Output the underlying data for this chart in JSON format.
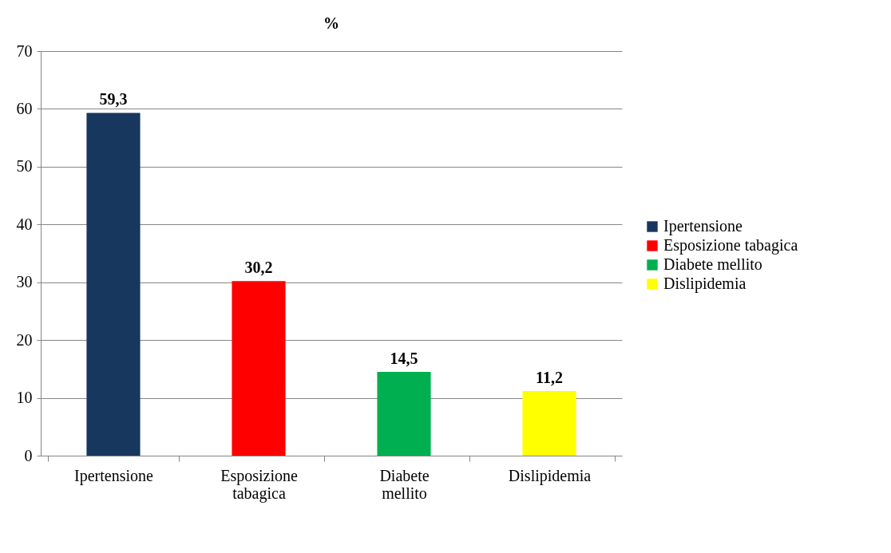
{
  "chart_data": {
    "type": "bar",
    "title": "%",
    "categories": [
      "Ipertensione",
      "Esposizione tabagica",
      "Diabete mellito",
      "Dislipidemia"
    ],
    "series": [
      {
        "name": "Ipertensione",
        "color": "#17375e",
        "values": [
          59.3,
          null,
          null,
          null
        ],
        "value_labels": [
          "59,3",
          null,
          null,
          null
        ]
      },
      {
        "name": "Esposizione tabagica",
        "color": "#ff0000",
        "values": [
          null,
          30.2,
          null,
          null
        ],
        "value_labels": [
          null,
          "30,2",
          null,
          null
        ]
      },
      {
        "name": "Diabete mellito",
        "color": "#00b050",
        "values": [
          null,
          null,
          14.5,
          null
        ],
        "value_labels": [
          null,
          null,
          "14,5",
          null
        ]
      },
      {
        "name": "Dislipidemia",
        "color": "#ffff00",
        "values": [
          null,
          null,
          null,
          11.2
        ],
        "value_labels": [
          null,
          null,
          null,
          "11,2"
        ]
      }
    ],
    "ylim": [
      0,
      70
    ],
    "yticks": [
      0,
      10,
      20,
      30,
      40,
      50,
      60,
      70
    ],
    "grid": "y",
    "legend": "right"
  }
}
